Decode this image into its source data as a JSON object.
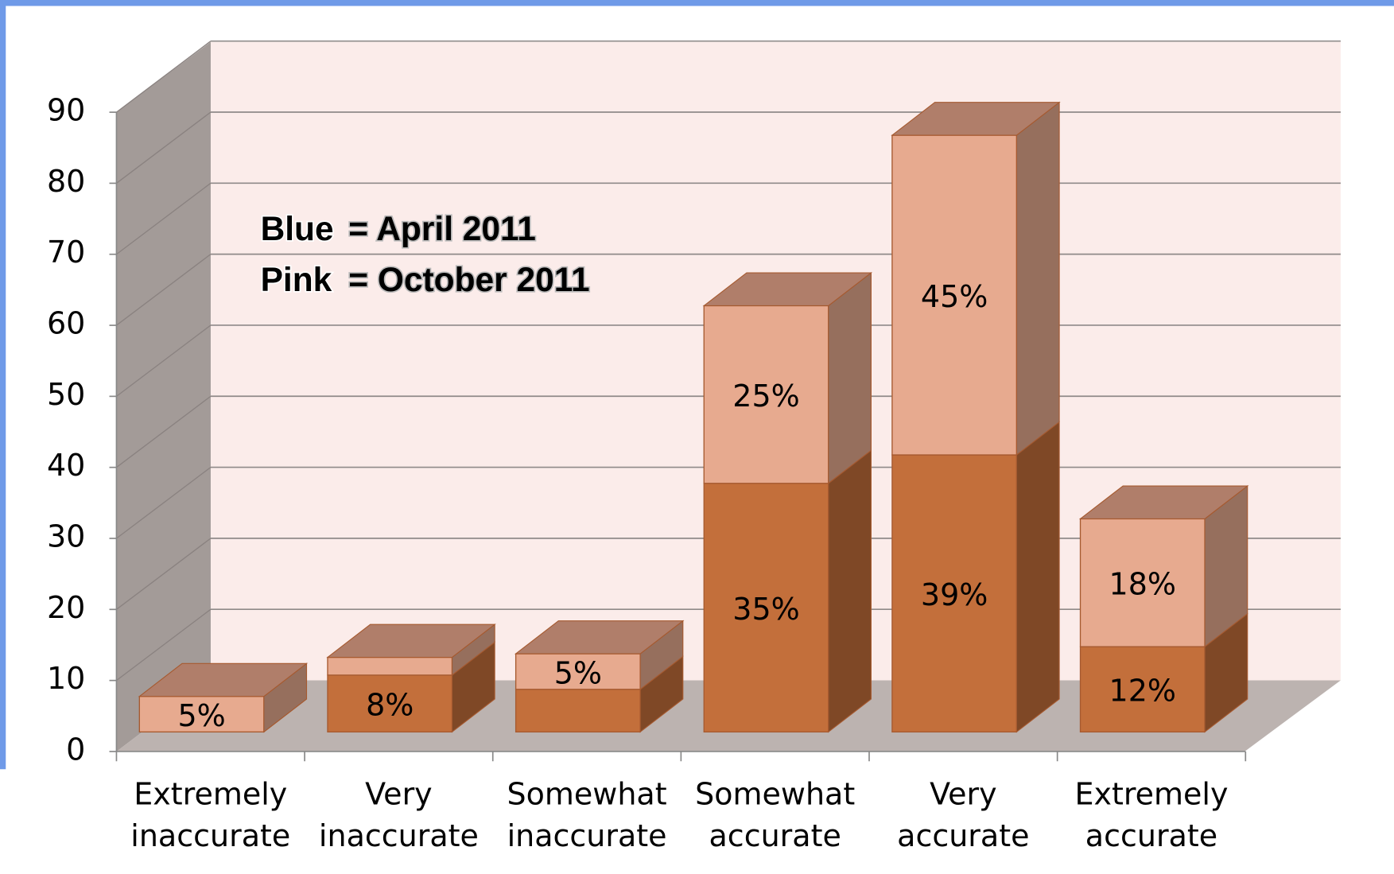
{
  "chart_data": {
    "type": "bar3d_stacked",
    "annotations": [
      "Blue",
      "= April 2011",
      "Pink",
      "= October 2011"
    ],
    "categories": [
      [
        "Extremely",
        "inaccurate"
      ],
      [
        "Very",
        "inaccurate"
      ],
      [
        "Somewhat",
        "inaccurate"
      ],
      [
        "Somewhat",
        "accurate"
      ],
      [
        "Very",
        "accurate"
      ],
      [
        "Extremely",
        "accurate"
      ]
    ],
    "series": [
      {
        "color": "#c36f3b",
        "values": [
          0,
          8,
          6,
          35,
          39,
          12
        ],
        "value_labels": [
          null,
          "8%",
          null,
          "35%",
          "39%",
          "12%"
        ]
      },
      {
        "color": "#e7aa8f",
        "values": [
          5,
          2.5,
          5,
          25,
          45,
          18
        ],
        "value_labels": [
          "5%",
          null,
          "5%",
          "25%",
          "45%",
          "18%"
        ]
      }
    ],
    "ylim": [
      0,
      90
    ],
    "yticks": [
      0,
      10,
      20,
      30,
      40,
      50,
      60,
      70,
      80,
      90
    ],
    "grid": true
  }
}
